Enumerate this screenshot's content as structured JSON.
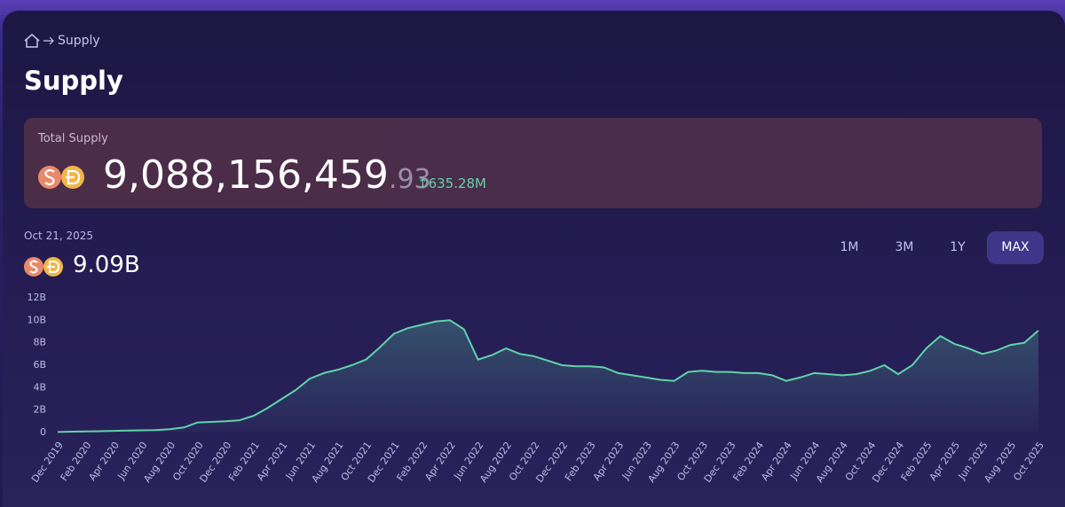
{
  "breadcrumb": "Supply",
  "title": "Supply",
  "total_supply": {
    "label": "Total Supply",
    "integer": "9,088,156,459",
    "decimals": ".93",
    "change": "↑635.28M"
  },
  "selected": {
    "date": "Oct 21, 2025",
    "value": "9.09B"
  },
  "ranges": [
    "1M",
    "3M",
    "1Y",
    "MAX"
  ],
  "chart_data": {
    "type": "area",
    "color": "#5fd3aa",
    "grid": false,
    "categories": [
      "Dec 2019",
      null,
      "Feb 2020",
      null,
      "Apr 2020",
      null,
      "Jun 2020",
      null,
      "Aug 2020",
      null,
      "Oct 2020",
      null,
      "Dec 2020",
      null,
      "Feb 2021",
      null,
      "Apr 2021",
      null,
      "Jun 2021",
      null,
      "Aug 2021",
      null,
      "Oct 2021",
      null,
      "Dec 2021",
      null,
      "Feb 2022",
      null,
      "Apr 2022",
      null,
      "Jun 2022",
      null,
      "Aug 2022",
      null,
      "Oct 2022",
      null,
      "Dec 2022",
      null,
      "Feb 2023",
      null,
      "Apr 2023",
      null,
      "Jun 2023",
      null,
      "Aug 2023",
      null,
      "Oct 2023",
      null,
      "Dec 2023",
      null,
      "Feb 2024",
      null,
      "Apr 2024",
      null,
      "Jun 2024",
      null,
      "Aug 2024",
      null,
      "Oct 2024",
      null,
      "Dec 2024",
      null,
      "Feb 2025",
      null,
      "Apr 2025",
      null,
      "Jun 2025",
      null,
      "Aug 2025",
      null,
      "Oct 2025"
    ],
    "values": [
      0.05,
      0.08,
      0.1,
      0.12,
      0.15,
      0.17,
      0.2,
      0.22,
      0.3,
      0.45,
      0.9,
      0.95,
      1.0,
      1.1,
      1.5,
      2.2,
      3.0,
      3.8,
      4.8,
      5.3,
      5.6,
      6.0,
      6.5,
      7.6,
      8.8,
      9.3,
      9.6,
      9.9,
      10.0,
      9.2,
      6.5,
      6.9,
      7.5,
      7.0,
      6.8,
      6.4,
      6.0,
      5.9,
      5.9,
      5.8,
      5.3,
      5.1,
      4.9,
      4.7,
      4.6,
      5.4,
      5.5,
      5.4,
      5.4,
      5.3,
      5.3,
      5.1,
      4.6,
      4.9,
      5.3,
      5.2,
      5.1,
      5.2,
      5.5,
      6.0,
      5.2,
      6.0,
      7.5,
      8.6,
      7.9,
      7.5,
      7.0,
      7.3,
      7.8,
      8.0,
      9.09
    ],
    "ylim": [
      0,
      12
    ],
    "yticks": [
      0,
      {
        "value": 2,
        "label": "2B"
      },
      {
        "value": 4,
        "label": "4B"
      },
      {
        "value": 6,
        "label": "6B"
      },
      {
        "value": 8,
        "label": "8B"
      },
      {
        "value": 10,
        "label": "10B"
      },
      {
        "value": 12,
        "label": "12B"
      }
    ]
  }
}
